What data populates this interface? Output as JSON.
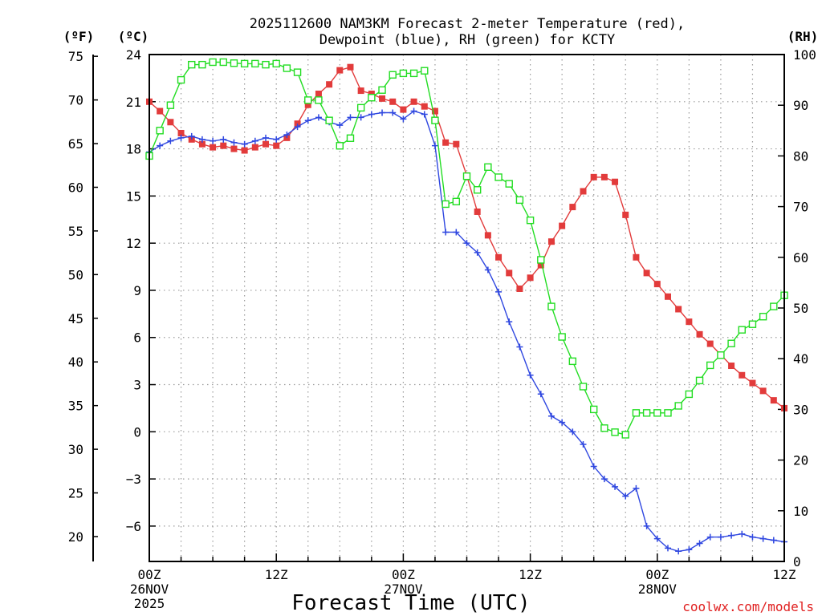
{
  "chart_data": {
    "type": "line",
    "title_line1": "2025112600 NAM3KM Forecast 2-meter Temperature (red),",
    "title_line2": "Dewpoint (blue), RH (green) for KCTY",
    "xlabel": "Forecast Time (UTC)",
    "unit_f": "(ºF)",
    "unit_c": "(ºC)",
    "unit_rh": "(RH)",
    "credit": "coolwx.com/models",
    "x_range_hours": [
      0,
      60
    ],
    "c_range": [
      -8.25,
      24
    ],
    "f_range": [
      17.15,
      75.2
    ],
    "rh_range": [
      0,
      100
    ],
    "x_ticks": [
      {
        "hour": 0,
        "lines": [
          "00Z",
          "26NOV",
          "2025"
        ]
      },
      {
        "hour": 12,
        "lines": [
          "12Z"
        ]
      },
      {
        "hour": 24,
        "lines": [
          "00Z",
          "27NOV"
        ]
      },
      {
        "hour": 36,
        "lines": [
          "12Z"
        ]
      },
      {
        "hour": 48,
        "lines": [
          "00Z",
          "28NOV"
        ]
      },
      {
        "hour": 60,
        "lines": [
          "12Z"
        ]
      }
    ],
    "c_ticks": [
      "24",
      "21",
      "18",
      "15",
      "12",
      "9",
      "6",
      "3",
      "0",
      "-3",
      "-6"
    ],
    "c_tick_values": [
      24,
      21,
      18,
      15,
      12,
      9,
      6,
      3,
      0,
      -3,
      -6
    ],
    "f_ticks": [
      "75",
      "70",
      "65",
      "60",
      "55",
      "50",
      "45",
      "40",
      "35",
      "30",
      "25",
      "20"
    ],
    "f_tick_values": [
      75,
      70,
      65,
      60,
      55,
      50,
      45,
      40,
      35,
      30,
      25,
      20
    ],
    "rh_ticks": [
      "100",
      "90",
      "80",
      "70",
      "60",
      "50",
      "40",
      "30",
      "20",
      "10",
      "0"
    ],
    "rh_tick_values": [
      100,
      90,
      80,
      70,
      60,
      50,
      40,
      30,
      20,
      10,
      0
    ],
    "series": [
      {
        "name": "Temperature",
        "unit": "C",
        "color": "#e23b3b",
        "marker": "filled-square",
        "x": [
          0,
          1,
          2,
          3,
          4,
          5,
          6,
          7,
          8,
          9,
          10,
          11,
          12,
          13,
          14,
          15,
          16,
          17,
          18,
          19,
          20,
          21,
          22,
          23,
          24,
          25,
          26,
          27,
          28,
          29,
          30,
          31,
          32,
          33,
          34,
          35,
          36,
          37,
          38,
          39,
          40,
          41,
          42,
          43,
          44,
          45,
          46,
          47,
          48,
          49,
          50,
          51,
          52,
          53,
          54,
          55,
          56,
          57,
          58,
          59,
          60
        ],
        "values": [
          21.0,
          20.4,
          19.7,
          19.0,
          18.6,
          18.3,
          18.1,
          18.2,
          18.0,
          17.9,
          18.1,
          18.3,
          18.2,
          18.7,
          19.6,
          20.8,
          21.5,
          22.1,
          23.0,
          23.2,
          21.7,
          21.5,
          21.2,
          21.0,
          20.5,
          21.0,
          20.7,
          20.4,
          18.4,
          18.3,
          16.3,
          14.0,
          12.5,
          11.1,
          10.1,
          9.1,
          9.8,
          10.6,
          12.1,
          13.1,
          14.3,
          15.3,
          16.2,
          16.2,
          15.9,
          13.8,
          11.1,
          10.1,
          9.4,
          8.6,
          7.8,
          7.0,
          6.2,
          5.6,
          4.9,
          4.2,
          3.6,
          3.1,
          2.6,
          2.0,
          1.5
        ]
      },
      {
        "name": "Dewpoint",
        "unit": "C",
        "color": "#2f47e0",
        "marker": "plus",
        "x": [
          0,
          1,
          2,
          3,
          4,
          5,
          6,
          7,
          8,
          9,
          10,
          11,
          12,
          13,
          14,
          15,
          16,
          17,
          18,
          19,
          20,
          21,
          22,
          23,
          24,
          25,
          26,
          27,
          28,
          29,
          30,
          31,
          32,
          33,
          34,
          35,
          36,
          37,
          38,
          39,
          40,
          41,
          42,
          43,
          44,
          45,
          46,
          47,
          48,
          49,
          50,
          51,
          52,
          53,
          54,
          55,
          56,
          57,
          58,
          59,
          60
        ],
        "values": [
          17.8,
          18.2,
          18.5,
          18.7,
          18.8,
          18.6,
          18.5,
          18.6,
          18.4,
          18.3,
          18.5,
          18.7,
          18.6,
          18.9,
          19.4,
          19.8,
          20.0,
          19.7,
          19.5,
          20.0,
          20.0,
          20.2,
          20.3,
          20.3,
          19.9,
          20.4,
          20.2,
          18.2,
          12.7,
          12.7,
          12.0,
          11.4,
          10.3,
          8.9,
          7.0,
          5.4,
          3.6,
          2.4,
          1.0,
          0.6,
          0.0,
          -0.8,
          -2.2,
          -3.0,
          -3.5,
          -4.1,
          -3.6,
          -6.0,
          -6.8,
          -7.4,
          -7.6,
          -7.5,
          -7.1,
          -6.7,
          -6.7,
          -6.6,
          -6.5,
          -6.7,
          -6.8,
          -6.9,
          -7.0
        ]
      },
      {
        "name": "RH",
        "unit": "%",
        "color": "#22dd22",
        "marker": "open-square",
        "x": [
          0,
          1,
          2,
          3,
          4,
          5,
          6,
          7,
          8,
          9,
          10,
          11,
          12,
          13,
          14,
          15,
          16,
          17,
          18,
          19,
          20,
          21,
          22,
          23,
          24,
          25,
          26,
          27,
          28,
          29,
          30,
          31,
          32,
          33,
          34,
          35,
          36,
          37,
          38,
          39,
          40,
          41,
          42,
          43,
          44,
          45,
          46,
          47,
          48,
          49,
          50,
          51,
          52,
          53,
          54,
          55,
          56,
          57,
          58,
          59,
          60
        ],
        "values": [
          80,
          85,
          90,
          95,
          98,
          98,
          98.5,
          98.5,
          98.3,
          98.2,
          98.2,
          98.0,
          98.2,
          97.3,
          96.5,
          91,
          91,
          87,
          82,
          83.5,
          89.5,
          91.5,
          93,
          96,
          96.3,
          96.3,
          96.8,
          87,
          70.5,
          71,
          76,
          73.3,
          77.8,
          75.8,
          74.5,
          71.3,
          67.3,
          59.5,
          50.3,
          44.3,
          39.5,
          34.5,
          30,
          26.3,
          25.5,
          25,
          29.3,
          29.3,
          29.3,
          29.3,
          30.7,
          33,
          35.7,
          38.7,
          40.7,
          43,
          45.7,
          46.8,
          48.3,
          50.3,
          52.5
        ]
      }
    ]
  }
}
